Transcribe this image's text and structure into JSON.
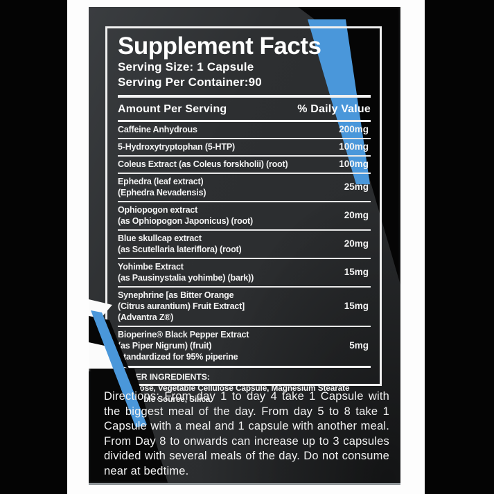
{
  "label": {
    "title": "Supplement Facts",
    "serving_size": "Serving Size: 1 Capsule",
    "servings_per_container": "Serving Per Container:90",
    "amount_per_serving_header": "Amount Per Serving",
    "daily_value_header": "% Daily Value",
    "ingredients": [
      {
        "name_lines": [
          "Caffeine Anhydrous"
        ],
        "amount": "200mg"
      },
      {
        "name_lines": [
          "5-Hydroxytryptophan (5-HTP)"
        ],
        "amount": "100mg"
      },
      {
        "name_lines": [
          "Coleus Extract (as Coleus forskholii) (root)"
        ],
        "amount": "100mg"
      },
      {
        "name_lines": [
          "Ephedra  (leaf extract)",
          "(Ephedra Nevadensis)"
        ],
        "amount": "25mg"
      },
      {
        "name_lines": [
          "Ophiopogon extract",
          "(as Ophiopogon Japonicus) (root)"
        ],
        "amount": "20mg"
      },
      {
        "name_lines": [
          "Blue skullcap extract",
          "(as Scutellaria lateriflora) (root)"
        ],
        "amount": "20mg"
      },
      {
        "name_lines": [
          "Yohimbe Extract",
          "(as Pausinystalia yohimbe) (bark))"
        ],
        "amount": "15mg"
      },
      {
        "name_lines": [
          "Synephrine [as Bitter Orange",
          "(Citrus aurantium) Fruit Extract]",
          "(Advantra Z®)"
        ],
        "amount": "15mg"
      },
      {
        "name_lines": [
          "Bioperine® Black Pepper Extract",
          "(as Piper Nigrum) (fruit)",
          "Standardized for 95% piperine"
        ],
        "amount": "5mg"
      }
    ],
    "other_ingredients_label": "OTHER INGREDIENTS:",
    "other_ingredients_lines": [
      "Cellulose, Vegetable Cellulose Capsule, Magnesium Stearate",
      "Vegetable Source, Silica."
    ]
  },
  "directions": "Directions: From day 1 to day 4 take 1 Capsule with the biggest meal of the day. From day 5 to 8 take 1 Capsule with a meal and 1 capsule with another meal. From Day 8 to onwards can increase up to 3 capsules divided with several meals of the day. Do not consume near at bedtime.",
  "colors": {
    "accent_blue": "#4a97da",
    "panel_charcoal": "#2d2f31",
    "black": "#050505",
    "border_white": "#f1f1f1"
  }
}
